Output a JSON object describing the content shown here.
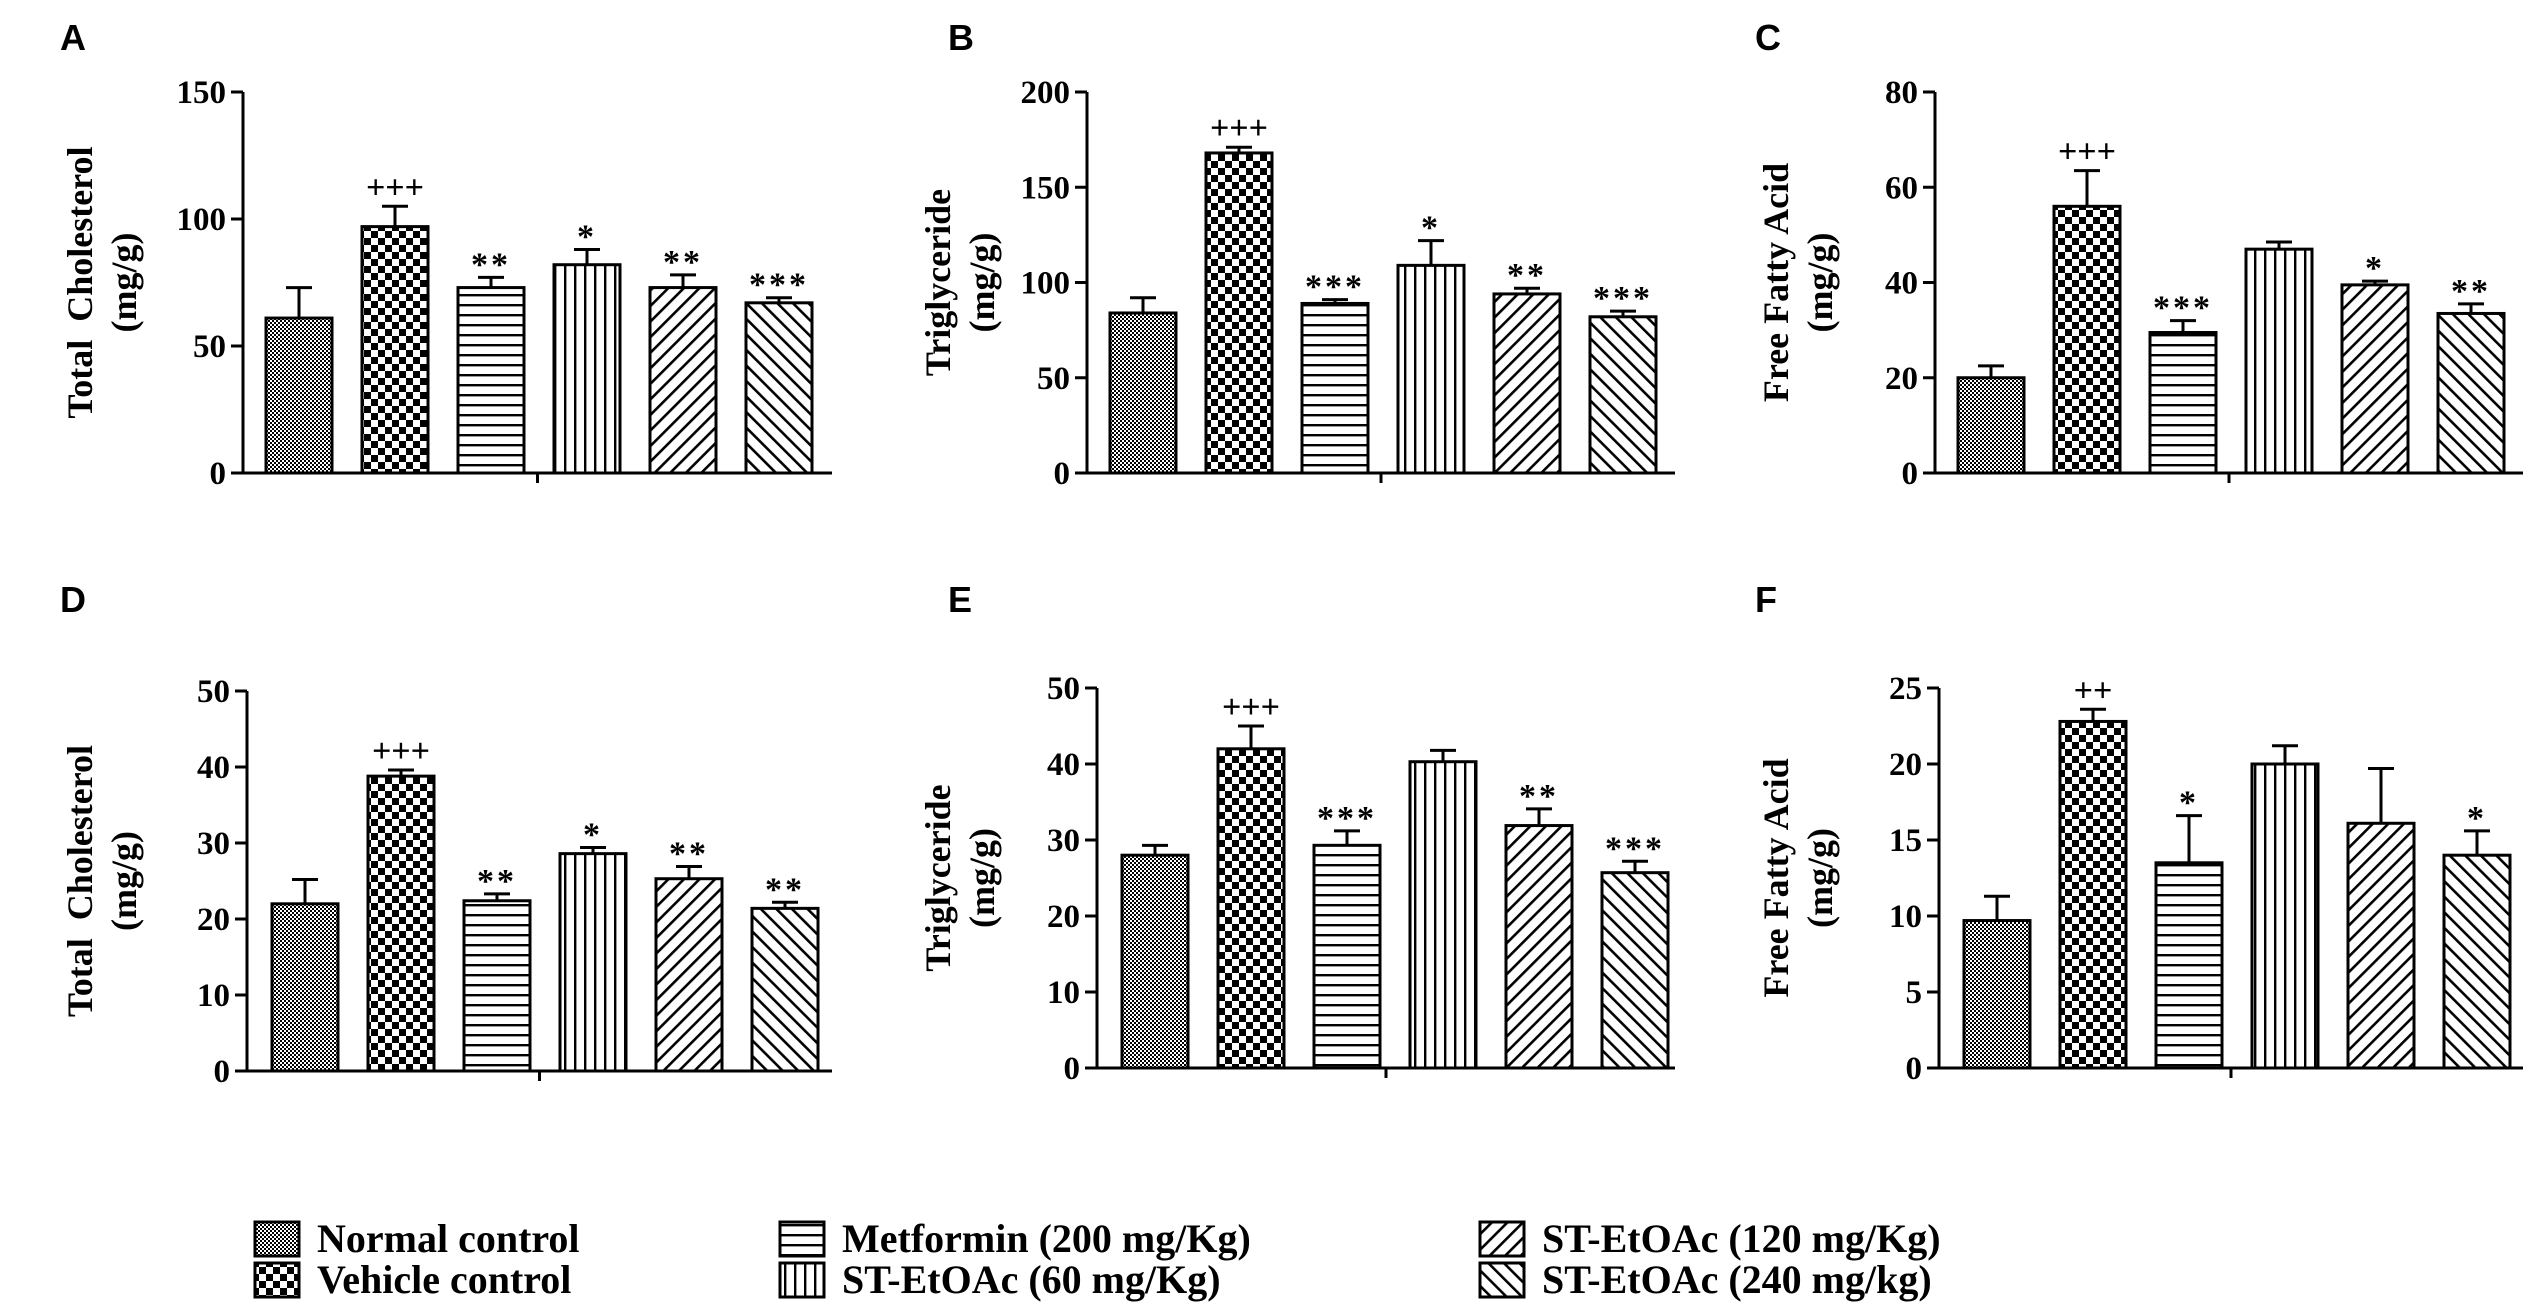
{
  "groups": [
    {
      "id": "normal",
      "label": "Normal control",
      "pattern": "pat-fine"
    },
    {
      "id": "vehicle",
      "label": "Vehicle control",
      "pattern": "pat-check"
    },
    {
      "id": "metformin",
      "label": "Metformin (200 mg/Kg)",
      "pattern": "pat-hlines"
    },
    {
      "id": "st60",
      "label": "ST-EtOAc (60 mg/Kg)",
      "pattern": "pat-vlines"
    },
    {
      "id": "st120",
      "label": "ST-EtOAc (120 mg/Kg)",
      "pattern": "pat-diag"
    },
    {
      "id": "st240",
      "label": "ST-EtOAc (240 mg/kg)",
      "pattern": "pat-antidiag"
    }
  ],
  "chart_data": [
    {
      "panel": "A",
      "type": "bar",
      "ylabel_line1": "Total  Cholesterol",
      "ylabel_line2": "(mg/g)",
      "ylim": [
        0,
        150
      ],
      "ticks": [
        "0",
        "50",
        "100",
        "150"
      ],
      "tick_values": [
        0,
        50,
        100,
        150
      ],
      "values": [
        61,
        97,
        73,
        82,
        73,
        67
      ],
      "errors": [
        12,
        8,
        4,
        6,
        5,
        2
      ],
      "annotations": [
        "",
        "+++",
        "**",
        "*",
        "**",
        "***"
      ]
    },
    {
      "panel": "B",
      "type": "bar",
      "ylabel_line1": "Triglyceride",
      "ylabel_line2": "(mg/g)",
      "ylim": [
        0,
        200
      ],
      "ticks": [
        "0",
        "50",
        "100",
        "150",
        "200"
      ],
      "tick_values": [
        0,
        50,
        100,
        150,
        200
      ],
      "values": [
        84,
        168,
        89,
        109,
        94,
        82
      ],
      "errors": [
        8,
        3,
        2,
        13,
        3,
        3
      ],
      "annotations": [
        "",
        "+++",
        "***",
        "*",
        "**",
        "***"
      ]
    },
    {
      "panel": "C",
      "type": "bar",
      "ylabel_line1": "Free Fatty Acid",
      "ylabel_line2": "(mg/g)",
      "ylim": [
        0,
        80
      ],
      "ticks": [
        "0",
        "20",
        "40",
        "60",
        "80"
      ],
      "tick_values": [
        0,
        20,
        40,
        60,
        80
      ],
      "values": [
        20,
        56,
        29.5,
        47,
        39.5,
        33.5
      ],
      "errors": [
        2.5,
        7.5,
        2.5,
        1.5,
        0.8,
        2
      ],
      "annotations": [
        "",
        "+++",
        "***",
        "",
        "*",
        "**"
      ]
    },
    {
      "panel": "D",
      "type": "bar",
      "ylabel_line1": "Total  Cholesterol",
      "ylabel_line2": "(mg/g)",
      "ylim": [
        0,
        50
      ],
      "ticks": [
        "0",
        "10",
        "20",
        "30",
        "40",
        "50"
      ],
      "tick_values": [
        0,
        10,
        20,
        30,
        40,
        50
      ],
      "values": [
        22,
        38.8,
        22.4,
        28.6,
        25.3,
        21.4
      ],
      "errors": [
        3.2,
        0.8,
        0.9,
        0.8,
        1.6,
        0.8
      ],
      "annotations": [
        "",
        "+++",
        "**",
        "*",
        "**",
        "**"
      ]
    },
    {
      "panel": "E",
      "type": "bar",
      "ylabel_line1": "Triglyceride",
      "ylabel_line2": "(mg/g)",
      "ylim": [
        0,
        50
      ],
      "ticks": [
        "0",
        "10",
        "20",
        "30",
        "40",
        "50"
      ],
      "tick_values": [
        0,
        10,
        20,
        30,
        40,
        50
      ],
      "values": [
        28,
        42,
        29.3,
        40.3,
        31.9,
        25.7
      ],
      "errors": [
        1.3,
        3,
        1.9,
        1.5,
        2.2,
        1.5
      ],
      "annotations": [
        "",
        "+++",
        "***",
        "",
        "**",
        "***"
      ]
    },
    {
      "panel": "F",
      "type": "bar",
      "ylabel_line1": "Free Fatty Acid",
      "ylabel_line2": "(mg/g)",
      "ylim": [
        0,
        25
      ],
      "ticks": [
        "0",
        "5",
        "10",
        "15",
        "20",
        "25"
      ],
      "tick_values": [
        0,
        5,
        10,
        15,
        20,
        25
      ],
      "values": [
        9.7,
        22.8,
        13.5,
        20,
        16.1,
        14
      ],
      "errors": [
        1.6,
        0.8,
        3.1,
        1.2,
        3.6,
        1.6
      ],
      "annotations": [
        "",
        "++",
        "*",
        "",
        "",
        "*"
      ]
    }
  ]
}
